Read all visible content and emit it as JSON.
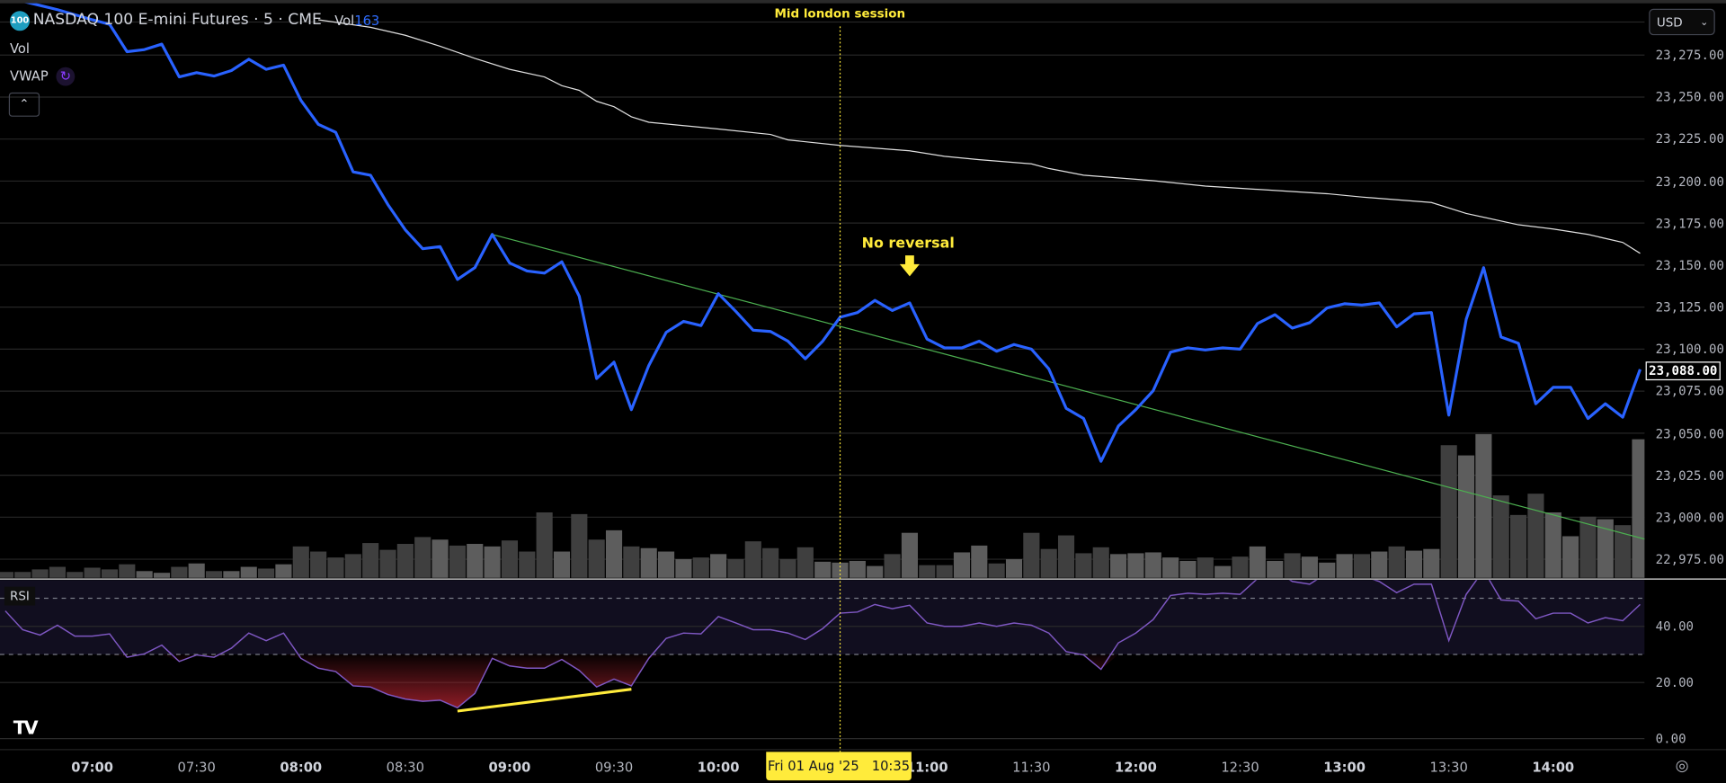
{
  "header": {
    "symbol_badge": "100",
    "title": "NASDAQ 100 E-mini Futures · 5 · CME",
    "vol_label": "Vol",
    "vol_value": "163",
    "indicators": [
      "Vol",
      "VWAP"
    ],
    "currency": "USD"
  },
  "annotations": {
    "session_label": "Mid london session",
    "no_reversal": "No reversal"
  },
  "crosshair": {
    "date_label": "Fri 01 Aug '25",
    "time_label": "10:35",
    "time": "10:35"
  },
  "rsi_pane": {
    "label": "RSI"
  },
  "colors": {
    "price_line": "#2962ff",
    "vwap": "#e0e0e0",
    "trendline": "#4caf50",
    "rsi_line": "#7e57c2",
    "rsi_band": "#110e1f",
    "oversold_fill": "#9c1f2a",
    "divergence_line": "#ffeb3b",
    "annotation": "#ffeb3b",
    "volume_up": "#5d5d5d",
    "volume_down": "#3f3f3f"
  },
  "chart_data": {
    "type": "line",
    "current_price": "23,088.00",
    "price_axis": {
      "ticks": [
        "23,275.00",
        "23,250.00",
        "23,225.00",
        "23,200.00",
        "23,175.00",
        "23,150.00",
        "23,125.00",
        "23,100.00",
        "23,075.00",
        "23,050.00",
        "23,025.00",
        "23,000.00",
        "22,975.00"
      ],
      "range": [
        22965,
        23305
      ]
    },
    "rsi_axis": {
      "ticks": [
        "40.00",
        "20.00",
        "0.00"
      ],
      "levels": {
        "upper_band": 70,
        "middle": 50,
        "lower_band": 30
      }
    },
    "time_axis": {
      "ticks": [
        "07:00",
        "07:30",
        "08:00",
        "08:30",
        "09:00",
        "09:30",
        "10:00",
        "11:00",
        "11:30",
        "12:00",
        "12:30",
        "13:00",
        "13:30",
        "14:00"
      ]
    },
    "times": [
      "06:35",
      "06:40",
      "06:45",
      "06:50",
      "06:55",
      "07:00",
      "07:05",
      "07:10",
      "07:15",
      "07:20",
      "07:25",
      "07:30",
      "07:35",
      "07:40",
      "07:45",
      "07:50",
      "07:55",
      "08:00",
      "08:05",
      "08:10",
      "08:15",
      "08:20",
      "08:25",
      "08:30",
      "08:35",
      "08:40",
      "08:45",
      "08:50",
      "08:55",
      "09:00",
      "09:05",
      "09:10",
      "09:15",
      "09:20",
      "09:25",
      "09:30",
      "09:35",
      "09:40",
      "09:45",
      "09:50",
      "09:55",
      "10:00",
      "10:05",
      "10:10",
      "10:15",
      "10:20",
      "10:25",
      "10:30",
      "10:35",
      "10:40",
      "10:45",
      "10:50",
      "10:55",
      "11:00",
      "11:05",
      "11:10",
      "11:15",
      "11:20",
      "11:25",
      "11:30",
      "11:35",
      "11:40",
      "11:45",
      "11:50",
      "11:55",
      "12:00",
      "12:05",
      "12:10",
      "12:15",
      "12:20",
      "12:25",
      "12:30",
      "12:35",
      "12:40",
      "12:45",
      "12:50",
      "12:55",
      "13:00",
      "13:05",
      "13:10",
      "13:15",
      "13:20",
      "13:25",
      "13:30",
      "13:35",
      "13:40",
      "13:45",
      "13:50",
      "13:55",
      "14:00",
      "14:05",
      "14:10",
      "14:15",
      "14:20",
      "14:25"
    ],
    "close": [
      23310,
      23307,
      23304.5,
      23302,
      23299,
      23296,
      23293.25,
      23277,
      23278.25,
      23281.5,
      23262,
      23264.5,
      23262.5,
      23265.75,
      23272.5,
      23266.5,
      23269,
      23248,
      23233.75,
      23229,
      23205.5,
      23203.5,
      23186,
      23171,
      23159.75,
      23161,
      23141.5,
      23148.5,
      23168.25,
      23151.25,
      23146.5,
      23145.25,
      23152,
      23131.5,
      23082.5,
      23092.25,
      23064,
      23090.25,
      23110,
      23116.5,
      23114,
      23133,
      23122.5,
      23111.25,
      23110.5,
      23104.75,
      23094.25,
      23104.75,
      23119,
      23121.75,
      23129,
      23123,
      23127.5,
      23106,
      23100.75,
      23100.75,
      23104.75,
      23098.75,
      23102.75,
      23100,
      23088.25,
      23064.75,
      23058.75,
      23033.25,
      23054.25,
      23064,
      23075.25,
      23098.25,
      23100.75,
      23099.5,
      23100.75,
      23100,
      23115.25,
      23120.5,
      23112.5,
      23115.75,
      23124.5,
      23127,
      23126.25,
      23127.5,
      23113.25,
      23121,
      23121.75,
      23060.75,
      23117.75,
      23148.5,
      23107.25,
      23103.5,
      23067.5,
      23077.25,
      23077.25,
      23058.75,
      23067.5,
      23059.5,
      23088
    ],
    "volume": [
      7,
      7,
      10,
      13,
      7,
      12,
      10,
      16,
      8,
      6,
      13,
      17,
      8,
      8,
      13,
      11,
      16,
      37,
      31,
      24,
      28,
      41,
      33,
      40,
      48,
      45,
      38,
      40,
      37,
      44,
      31,
      77,
      31,
      75,
      45,
      56,
      37,
      35,
      31,
      22,
      24,
      28,
      22,
      43,
      35,
      22,
      36,
      19,
      18,
      20,
      14,
      28,
      53,
      15,
      15,
      30,
      38,
      17,
      22,
      53,
      34,
      50,
      29,
      36,
      28,
      29,
      30,
      24,
      20,
      24,
      14,
      25,
      37,
      20,
      29,
      25,
      18,
      28,
      28,
      31,
      37,
      32,
      34,
      156,
      144,
      169,
      97,
      74,
      99,
      77,
      49,
      72,
      69,
      62,
      163
    ],
    "rsi": [
      45.5,
      38.8,
      36.9,
      40.4,
      36.5,
      36.5,
      37.3,
      29,
      30.2,
      33.3,
      27.5,
      29.8,
      29,
      32.2,
      37.6,
      34.9,
      37.6,
      28.6,
      25.1,
      23.9,
      18.8,
      18.4,
      15.7,
      14.1,
      13.3,
      13.7,
      11,
      16.1,
      28.6,
      25.9,
      25.1,
      25.1,
      28.2,
      24.3,
      18.4,
      21.2,
      18.8,
      28.6,
      35.7,
      37.6,
      37.3,
      43.5,
      41.2,
      38.8,
      38.8,
      37.6,
      35.3,
      39.2,
      44.7,
      45.1,
      47.8,
      46.3,
      47.5,
      41.2,
      40,
      40,
      41.2,
      40,
      41.2,
      40.4,
      37.6,
      31,
      29.8,
      24.7,
      34.1,
      37.6,
      42.4,
      51,
      51.8,
      51.4,
      51.8,
      51.4,
      57,
      60,
      56,
      55,
      59,
      60,
      58,
      56,
      52,
      55,
      55,
      34.9,
      51.4,
      60,
      49.4,
      49,
      42.7,
      44.7,
      44.7,
      41.2,
      43.1,
      42,
      47.8
    ],
    "vwap": [
      {
        "time": "08:05",
        "value": 23296
      },
      {
        "time": "08:20",
        "value": 23291.5
      },
      {
        "time": "08:30",
        "value": 23286.75
      },
      {
        "time": "08:40",
        "value": 23280.25
      },
      {
        "time": "08:50",
        "value": 23273
      },
      {
        "time": "09:00",
        "value": 23266.5
      },
      {
        "time": "09:10",
        "value": 23262
      },
      {
        "time": "09:15",
        "value": 23256.75
      },
      {
        "time": "09:20",
        "value": 23254
      },
      {
        "time": "09:25",
        "value": 23247.5
      },
      {
        "time": "09:30",
        "value": 23244.25
      },
      {
        "time": "09:35",
        "value": 23238.25
      },
      {
        "time": "09:40",
        "value": 23235
      },
      {
        "time": "10:00",
        "value": 23231
      },
      {
        "time": "10:15",
        "value": 23227.75
      },
      {
        "time": "10:20",
        "value": 23224.5
      },
      {
        "time": "10:35",
        "value": 23221.25
      },
      {
        "time": "10:55",
        "value": 23218
      },
      {
        "time": "11:05",
        "value": 23214.75
      },
      {
        "time": "11:15",
        "value": 23212.75
      },
      {
        "time": "11:30",
        "value": 23210.25
      },
      {
        "time": "11:35",
        "value": 23207.5
      },
      {
        "time": "11:45",
        "value": 23203.5
      },
      {
        "time": "12:05",
        "value": 23200.25
      },
      {
        "time": "12:20",
        "value": 23197
      },
      {
        "time": "12:55",
        "value": 23192.5
      },
      {
        "time": "13:05",
        "value": 23190.5
      },
      {
        "time": "13:25",
        "value": 23187.25
      },
      {
        "time": "13:35",
        "value": 23180.75
      },
      {
        "time": "13:50",
        "value": 23174
      },
      {
        "time": "14:00",
        "value": 23171.5
      },
      {
        "time": "14:10",
        "value": 23168.25
      },
      {
        "time": "14:20",
        "value": 23163.5
      },
      {
        "time": "14:25",
        "value": 23157
      }
    ],
    "trendline": [
      {
        "time": "08:55",
        "price": 23168.25
      },
      {
        "time": "14:25",
        "price": 22987
      }
    ],
    "rsi_divergence_line": [
      {
        "time": "08:45",
        "rsi": 9.8
      },
      {
        "time": "09:35",
        "rsi": 17.6
      }
    ],
    "no_reversal_marker": {
      "time": "10:55",
      "price": 23127.5
    },
    "session_marker_time": "10:35"
  }
}
